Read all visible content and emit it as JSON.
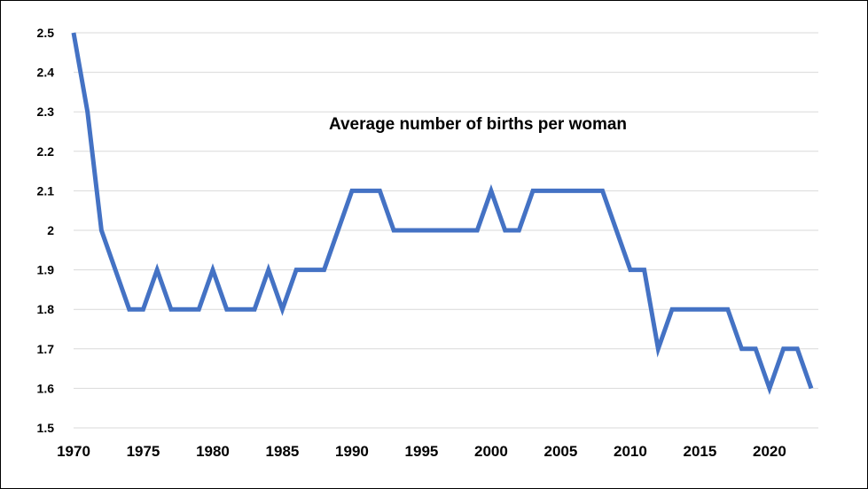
{
  "chart_data": {
    "type": "line",
    "title": "Average number of births per woman",
    "xlabel": "",
    "ylabel": "",
    "xlim": [
      1970,
      2023
    ],
    "ylim": [
      1.5,
      2.5
    ],
    "grid": true,
    "legend": "none",
    "x_ticks": [
      1970,
      1975,
      1980,
      1985,
      1990,
      1995,
      2000,
      2005,
      2010,
      2015,
      2020
    ],
    "x_tick_labels": [
      "1970",
      "1975",
      "1980",
      "1985",
      "1990",
      "1995",
      "2000",
      "2005",
      "2010",
      "2015",
      "2020"
    ],
    "y_ticks": [
      1.5,
      1.6,
      1.7,
      1.8,
      1.9,
      2.0,
      2.1,
      2.2,
      2.3,
      2.4,
      2.5
    ],
    "y_tick_labels": [
      "1.5",
      "1.6",
      "1.7",
      "1.8",
      "1.9",
      "2",
      "2.1",
      "2.2",
      "2.3",
      "2.4",
      "2.5"
    ],
    "series": [
      {
        "color": "#4472c4",
        "x": [
          1970,
          1971,
          1972,
          1973,
          1974,
          1975,
          1976,
          1977,
          1978,
          1979,
          1980,
          1981,
          1982,
          1983,
          1984,
          1985,
          1986,
          1987,
          1988,
          1989,
          1990,
          1991,
          1992,
          1993,
          1994,
          1995,
          1996,
          1997,
          1998,
          1999,
          2000,
          2001,
          2002,
          2003,
          2004,
          2005,
          2006,
          2007,
          2008,
          2009,
          2010,
          2011,
          2012,
          2013,
          2014,
          2015,
          2016,
          2017,
          2018,
          2019,
          2020,
          2021,
          2022,
          2023
        ],
        "values": [
          2.5,
          2.3,
          2.0,
          1.9,
          1.8,
          1.8,
          1.9,
          1.8,
          1.8,
          1.8,
          1.9,
          1.8,
          1.8,
          1.8,
          1.9,
          1.8,
          1.9,
          1.9,
          1.9,
          2.0,
          2.1,
          2.1,
          2.1,
          2.0,
          2.0,
          2.0,
          2.0,
          2.0,
          2.0,
          2.0,
          2.1,
          2.0,
          2.0,
          2.1,
          2.1,
          2.1,
          2.1,
          2.1,
          2.1,
          2.0,
          1.9,
          1.9,
          1.7,
          1.8,
          1.8,
          1.8,
          1.8,
          1.8,
          1.7,
          1.7,
          1.6,
          1.7,
          1.7,
          1.6
        ]
      }
    ]
  }
}
